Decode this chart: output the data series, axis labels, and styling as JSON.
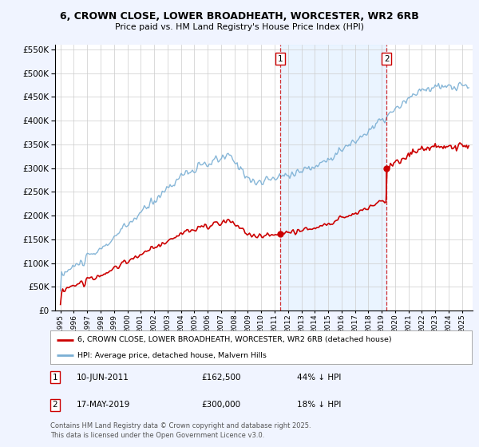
{
  "title": "6, CROWN CLOSE, LOWER BROADHEATH, WORCESTER, WR2 6RB",
  "subtitle": "Price paid vs. HM Land Registry's House Price Index (HPI)",
  "legend_house": "6, CROWN CLOSE, LOWER BROADHEATH, WORCESTER, WR2 6RB (detached house)",
  "legend_hpi": "HPI: Average price, detached house, Malvern Hills",
  "annotation1_label": "1",
  "annotation1_date": "10-JUN-2011",
  "annotation1_price": "£162,500",
  "annotation1_hpi": "44% ↓ HPI",
  "annotation2_label": "2",
  "annotation2_date": "17-MAY-2019",
  "annotation2_price": "£300,000",
  "annotation2_hpi": "18% ↓ HPI",
  "footnote": "Contains HM Land Registry data © Crown copyright and database right 2025.\nThis data is licensed under the Open Government Licence v3.0.",
  "house_color": "#cc0000",
  "hpi_color": "#7aafd4",
  "vline_color": "#cc0000",
  "background_color": "#f0f4ff",
  "plot_bg": "#ffffff",
  "span_color": "#ddeeff",
  "ylim": [
    0,
    560000
  ],
  "yticks": [
    0,
    50000,
    100000,
    150000,
    200000,
    250000,
    300000,
    350000,
    400000,
    450000,
    500000,
    550000
  ],
  "year_start": 1995,
  "year_end": 2025,
  "sale1_year": 2011.44,
  "sale1_price": 162500,
  "sale2_year": 2019.37,
  "sale2_price": 300000
}
